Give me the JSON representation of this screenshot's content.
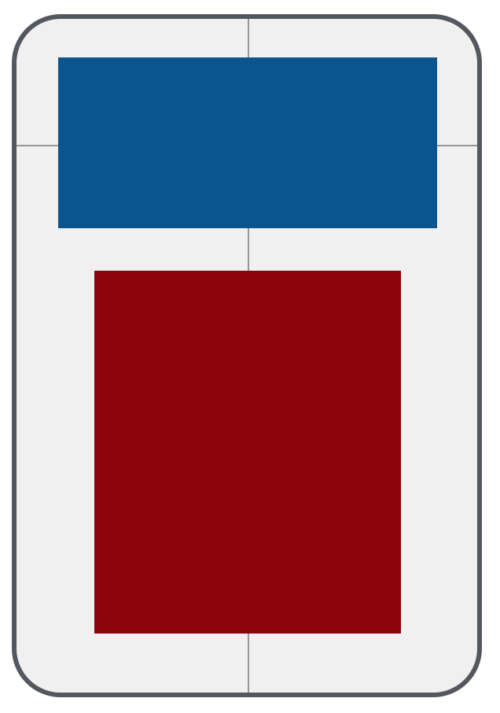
{
  "colors": {
    "frame_border": "#53575e",
    "frame_background": "#f0f0f0",
    "guide_lines": "#979797",
    "top_block": "#0a5590",
    "bottom_block": "#8e040c"
  }
}
